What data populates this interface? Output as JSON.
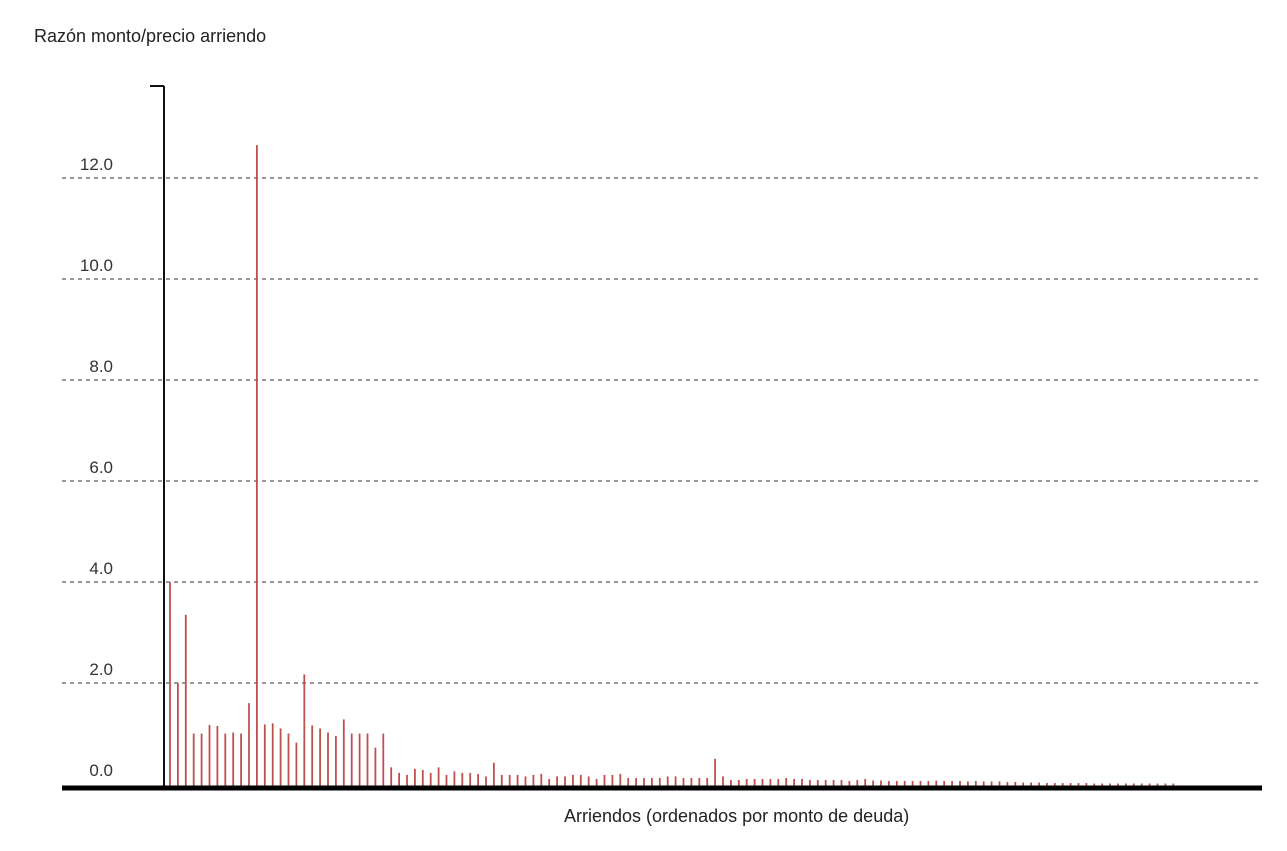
{
  "chart_data": {
    "type": "bar",
    "ylabel": "Razón monto/precio arriendo",
    "xlabel": "Arriendos (ordenados por monto de deuda)",
    "ylim": [
      0,
      14
    ],
    "yticks": [
      "0.0",
      "2.0",
      "4.0",
      "6.0",
      "8.0",
      "10.0",
      "12.0"
    ],
    "grid": true,
    "series": [
      {
        "color": "#c0504d",
        "values": [
          4.0,
          2.0,
          3.35,
          1.0,
          1.0,
          1.17,
          1.15,
          1.0,
          1.02,
          1.0,
          1.6,
          12.65,
          1.18,
          1.2,
          1.1,
          1.0,
          0.82,
          2.17,
          1.16,
          1.1,
          1.02,
          0.95,
          1.28,
          1.0,
          1.0,
          1.0,
          0.72,
          1.0,
          0.33,
          0.22,
          0.18,
          0.3,
          0.28,
          0.22,
          0.33,
          0.18,
          0.25,
          0.22,
          0.22,
          0.2,
          0.15,
          0.42,
          0.18,
          0.18,
          0.18,
          0.15,
          0.18,
          0.2,
          0.1,
          0.15,
          0.15,
          0.18,
          0.18,
          0.15,
          0.1,
          0.18,
          0.18,
          0.2,
          0.12,
          0.12,
          0.12,
          0.12,
          0.12,
          0.15,
          0.15,
          0.12,
          0.12,
          0.12,
          0.12,
          0.5,
          0.15,
          0.08,
          0.08,
          0.1,
          0.1,
          0.1,
          0.1,
          0.1,
          0.12,
          0.1,
          0.1,
          0.08,
          0.08,
          0.08,
          0.08,
          0.08,
          0.06,
          0.08,
          0.1,
          0.07,
          0.07,
          0.06,
          0.06,
          0.06,
          0.06,
          0.06,
          0.06,
          0.07,
          0.06,
          0.06,
          0.06,
          0.05,
          0.06,
          0.05,
          0.05,
          0.05,
          0.04,
          0.04,
          0.03,
          0.03,
          0.03,
          0.02,
          0.02,
          0.02,
          0.02,
          0.02,
          0.02,
          0.01,
          0.01,
          0.01,
          0.01,
          0.01,
          0.01,
          0.01,
          0.01,
          0.01,
          0.01,
          0.01
        ]
      }
    ]
  }
}
